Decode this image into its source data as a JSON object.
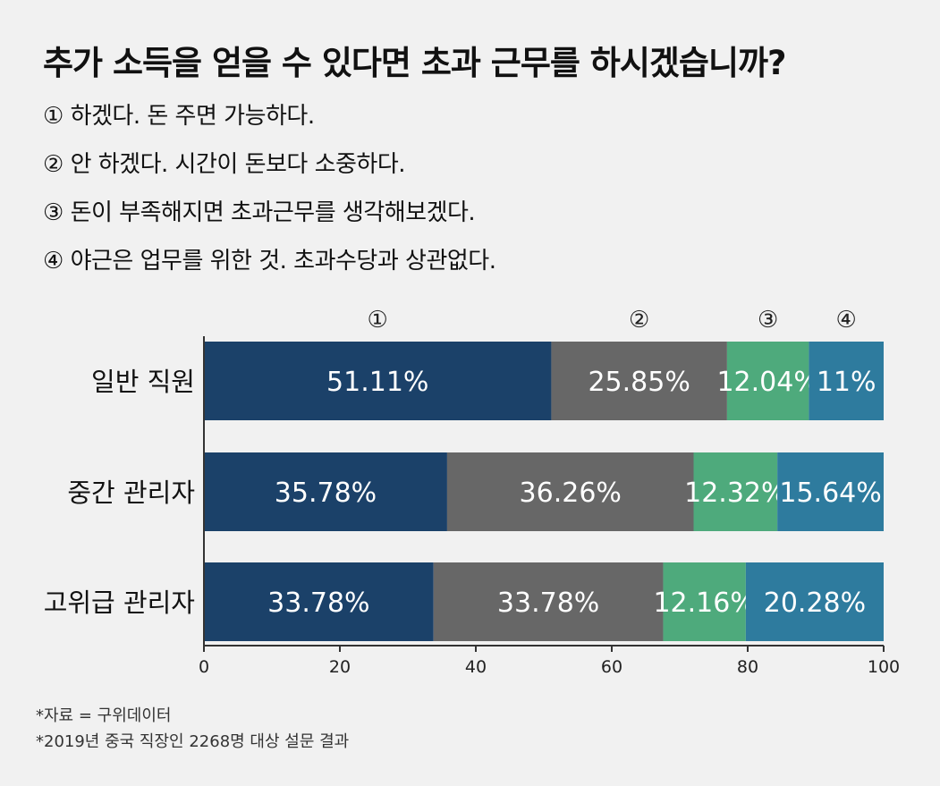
{
  "title": "추가 소득을 얻을 수 있다면 초과 근무를 하시겠습니까?",
  "options": [
    "① 하겠다. 돈 주면 가능하다.",
    "② 안 하겠다. 시간이 돈보다 소중하다.",
    "③ 돈이 부족해지면 초과근무를 생각해보겠다.",
    "④ 야근은 업무를 위한 것. 초과수당과 상관없다."
  ],
  "footnotes": [
    "*자료 = 구위데이터",
    "*2019년 중국 직장인 2268명 대상 설문 결과"
  ],
  "chart_data": {
    "type": "bar",
    "orientation": "horizontal",
    "stacked": true,
    "categories": [
      "일반 직원",
      "중간 관리자",
      "고위급 관리자"
    ],
    "series": [
      {
        "name": "①",
        "color": "#1b4169",
        "values": [
          51.11,
          35.78,
          33.78
        ],
        "labels": [
          "51.11%",
          "35.78%",
          "33.78%"
        ]
      },
      {
        "name": "②",
        "color": "#676767",
        "values": [
          25.85,
          36.26,
          33.78
        ],
        "labels": [
          "25.85%",
          "36.26%",
          "33.78%"
        ]
      },
      {
        "name": "③",
        "color": "#4eaa7c",
        "values": [
          12.04,
          12.32,
          12.16
        ],
        "labels": [
          "12.04%",
          "12.32%",
          "12.16%"
        ]
      },
      {
        "name": "④",
        "color": "#2e7b9e",
        "values": [
          11,
          15.64,
          20.28
        ],
        "labels": [
          "11%",
          "15.64%",
          "20.28%"
        ]
      }
    ],
    "xlim": [
      0,
      100
    ],
    "xticks": [
      "0",
      "20",
      "40",
      "60",
      "80",
      "100"
    ],
    "legend_position": "top"
  }
}
